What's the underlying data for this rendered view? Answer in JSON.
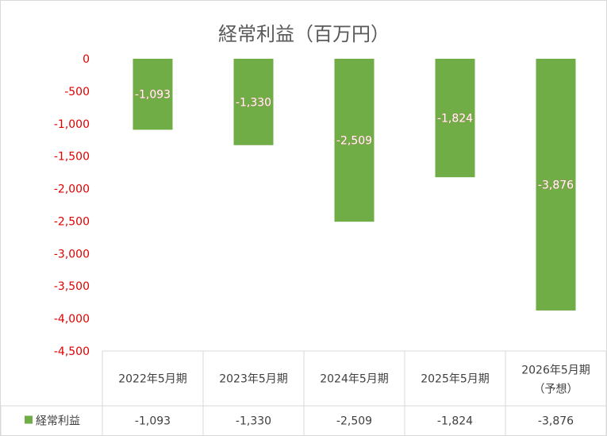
{
  "chart_data": {
    "type": "bar",
    "title": "経常利益（百万円）",
    "categories": [
      [
        "2022年5月期"
      ],
      [
        "2023年5月期"
      ],
      [
        "2024年5月期"
      ],
      [
        "2025年5月期"
      ],
      [
        "2026年5月期",
        "（予想）"
      ]
    ],
    "series": [
      {
        "name": "経常利益",
        "values": [
          -1093,
          -1330,
          -2509,
          -1824,
          -3876
        ],
        "labels": [
          "-1,093",
          "-1,330",
          "-2,509",
          "-1,824",
          "-3,876"
        ],
        "color": "#70ad47"
      }
    ],
    "yticks": [
      "0",
      "-500",
      "-1,000",
      "-1,500",
      "-2,000",
      "-2,500",
      "-3,000",
      "-3,500",
      "-4,000",
      "-4,500"
    ],
    "ylim": [
      -4500,
      0
    ],
    "ytick_color": "#e00000",
    "legend": "data-table"
  }
}
